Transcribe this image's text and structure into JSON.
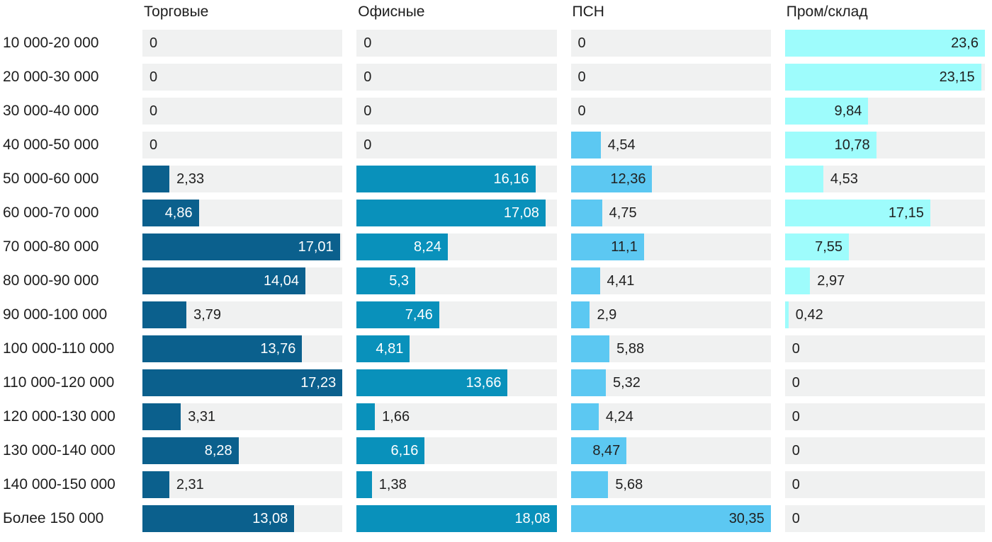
{
  "chart_data": {
    "type": "bar",
    "orientation": "horizontal",
    "title": "",
    "xlabel": "",
    "ylabel": "",
    "grid": false,
    "legend_position": "column-headers-top",
    "normalization": "each series scaled to its own maximum value",
    "decimal_separator": ",",
    "track_color": "#f0f1f1",
    "text_color": "#212121",
    "categories": [
      "10 000-20 000",
      "20 000-30 000",
      "30 000-40 000",
      "40 000-50 000",
      "50 000-60 000",
      "60 000-70 000",
      "70 000-80 000",
      "80 000-90 000",
      "90 000-100 000",
      "100 000-110 000",
      "110 000-120 000",
      "120 000-130 000",
      "130 000-140 000",
      "140 000-150 000",
      "Более 150 000"
    ],
    "series": [
      {
        "name": "Торговые",
        "color": "#0b608d",
        "label_color_inside": "#ffffff",
        "values": [
          0,
          0,
          0,
          0,
          2.33,
          4.86,
          17.01,
          14.04,
          3.79,
          13.76,
          17.23,
          3.31,
          8.28,
          2.31,
          13.08
        ]
      },
      {
        "name": "Офисные",
        "color": "#0991bb",
        "label_color_inside": "#ffffff",
        "values": [
          0,
          0,
          0,
          0,
          16.16,
          17.08,
          8.24,
          5.3,
          7.46,
          4.81,
          13.66,
          1.66,
          6.16,
          1.38,
          18.08
        ]
      },
      {
        "name": "ПСН",
        "color": "#5cc8f2",
        "label_color_inside": "#212121",
        "values": [
          0,
          0,
          0,
          4.54,
          12.36,
          4.75,
          11.1,
          4.41,
          2.9,
          5.88,
          5.32,
          4.24,
          8.47,
          5.68,
          30.35
        ]
      },
      {
        "name": "Пром/склад",
        "color": "#9efcfc",
        "label_color_inside": "#212121",
        "values": [
          23.6,
          23.15,
          9.84,
          10.78,
          4.53,
          17.15,
          7.55,
          2.97,
          0.42,
          0,
          0,
          0,
          0,
          0,
          0
        ]
      }
    ]
  }
}
